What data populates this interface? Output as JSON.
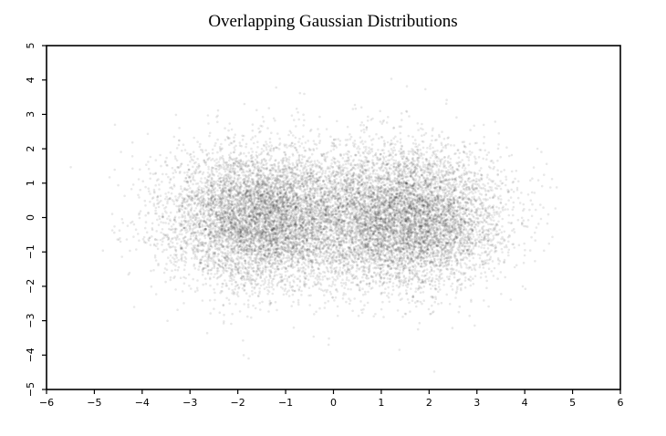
{
  "chart_data": {
    "type": "scatter",
    "title": "Overlapping Gaussian Distributions",
    "xlabel": "",
    "ylabel": "",
    "xlim": [
      -6,
      6
    ],
    "ylim": [
      -5,
      5
    ],
    "x_ticks": [
      "−6",
      "−5",
      "−4",
      "−3",
      "−2",
      "−1",
      "0",
      "1",
      "2",
      "3",
      "4",
      "5",
      "6"
    ],
    "y_ticks": [
      "−5",
      "−4",
      "−3",
      "−2",
      "−1",
      "0",
      "1",
      "2",
      "3",
      "4",
      "5"
    ],
    "grid": false,
    "legend": "none",
    "point_color": "#000000",
    "series": [
      {
        "center": [
          -1.5,
          0
        ],
        "std": [
          1.0,
          1.0
        ]
      },
      {
        "center": [
          1.5,
          0
        ],
        "std": [
          1.0,
          1.0
        ]
      }
    ]
  }
}
